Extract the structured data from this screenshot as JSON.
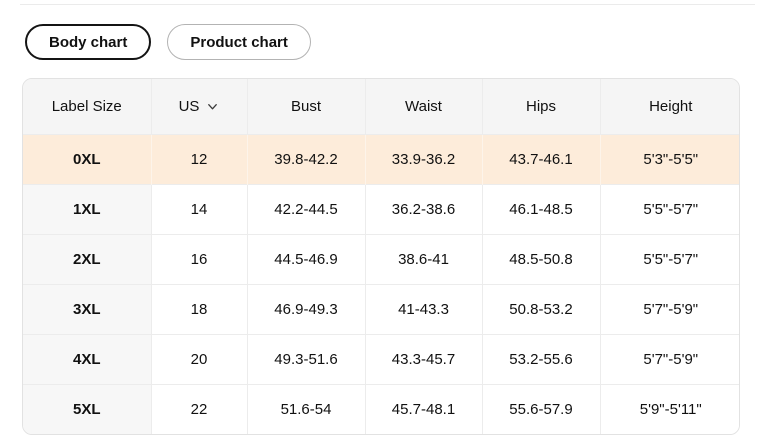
{
  "tabs": [
    {
      "label": "Body chart",
      "active": true
    },
    {
      "label": "Product chart",
      "active": false
    }
  ],
  "table": {
    "columns": [
      "Label Size",
      "US",
      "Bust",
      "Waist",
      "Hips",
      "Height"
    ],
    "us_header_icon": "chevron-down-icon",
    "rows": [
      {
        "highlighted": true,
        "cells": [
          "0XL",
          "12",
          "39.8-42.2",
          "33.9-36.2",
          "43.7-46.1",
          "5'3\"-5'5\""
        ]
      },
      {
        "highlighted": false,
        "cells": [
          "1XL",
          "14",
          "42.2-44.5",
          "36.2-38.6",
          "46.1-48.5",
          "5'5\"-5'7\""
        ]
      },
      {
        "highlighted": false,
        "cells": [
          "2XL",
          "16",
          "44.5-46.9",
          "38.6-41",
          "48.5-50.8",
          "5'5\"-5'7\""
        ]
      },
      {
        "highlighted": false,
        "cells": [
          "3XL",
          "18",
          "46.9-49.3",
          "41-43.3",
          "50.8-53.2",
          "5'7\"-5'9\""
        ]
      },
      {
        "highlighted": false,
        "cells": [
          "4XL",
          "20",
          "49.3-51.6",
          "43.3-45.7",
          "53.2-55.6",
          "5'7\"-5'9\""
        ]
      },
      {
        "highlighted": false,
        "cells": [
          "5XL",
          "22",
          "51.6-54",
          "45.7-48.1",
          "55.6-57.9",
          "5'9\"-5'11\""
        ]
      }
    ]
  },
  "colors": {
    "highlight_row_bg": "#fdecda",
    "header_bg": "#f5f5f5",
    "label_column_bg": "#f7f7f7",
    "table_border": "#e2e2e2",
    "cell_divider": "#ececec",
    "active_tab_border": "#141414",
    "inactive_tab_border": "#b3b3b3",
    "text": "#111111"
  }
}
